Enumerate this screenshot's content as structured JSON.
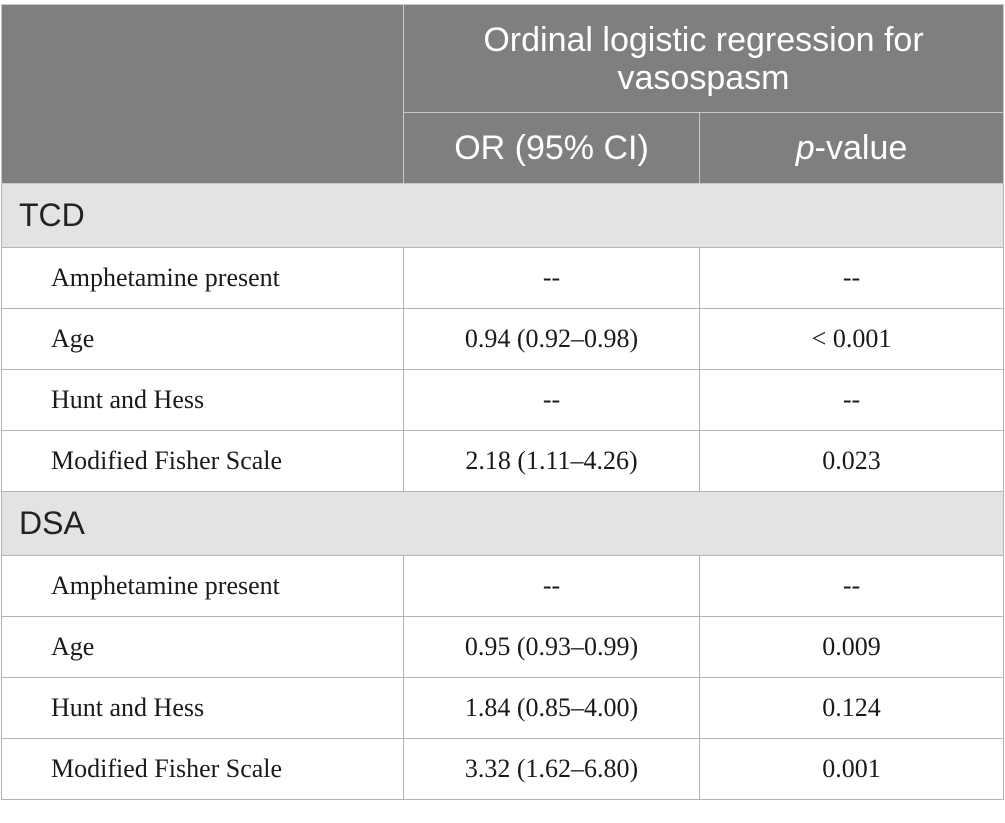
{
  "header": {
    "group_title": "Ordinal logistic regression for vasospasm",
    "col_or": "OR (95% CI)",
    "col_p_italic": "p",
    "col_p_rest": "-value"
  },
  "sections": [
    {
      "title": "TCD",
      "rows": [
        {
          "label": "Amphetamine present",
          "or": "--",
          "p": "--"
        },
        {
          "label": "Age",
          "or": "0.94 (0.92–0.98)",
          "p": "< 0.001"
        },
        {
          "label": "Hunt and Hess",
          "or": "--",
          "p": "--"
        },
        {
          "label": "Modified Fisher Scale",
          "or": "2.18 (1.11–4.26)",
          "p": "0.023"
        }
      ]
    },
    {
      "title": "DSA",
      "rows": [
        {
          "label": "Amphetamine present",
          "or": "--",
          "p": "--"
        },
        {
          "label": "Age",
          "or": "0.95 (0.93–0.99)",
          "p": "0.009"
        },
        {
          "label": "Hunt and Hess",
          "or": "1.84 (0.85–4.00)",
          "p": "0.124"
        },
        {
          "label": "Modified Fisher Scale",
          "or": "3.32 (1.62–6.80)",
          "p": "0.001"
        }
      ]
    }
  ]
}
